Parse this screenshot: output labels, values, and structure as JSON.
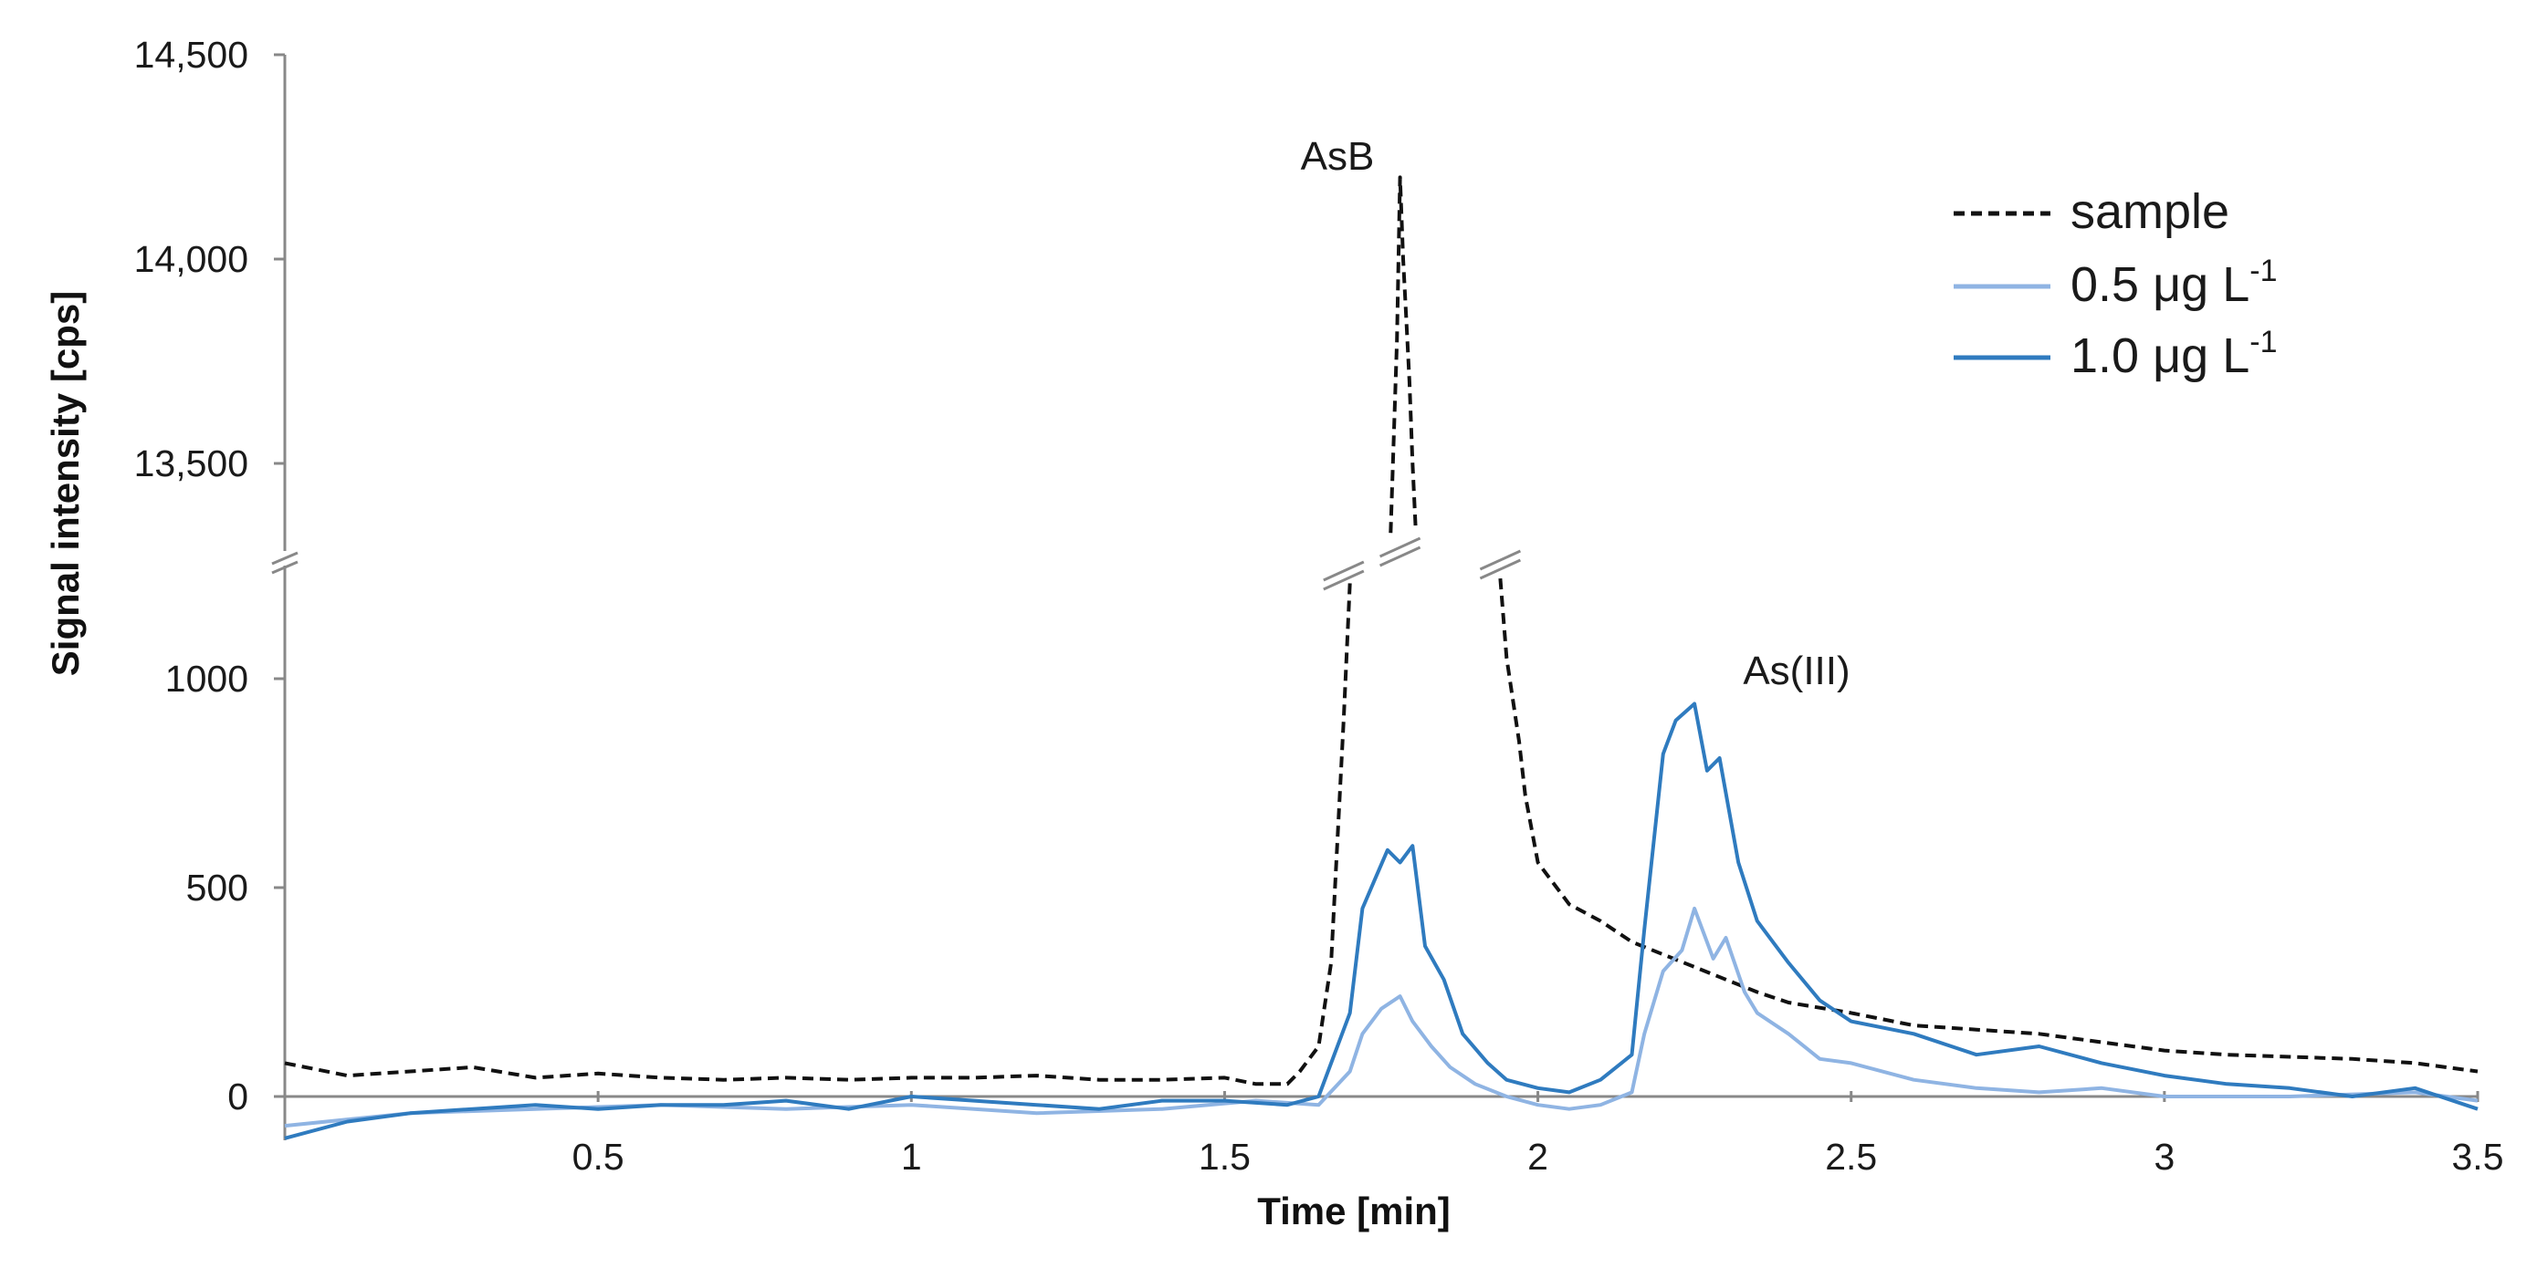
{
  "chart_data": {
    "type": "line",
    "xlabel": "Time [min]",
    "ylabel": "Signal intensity [cps]",
    "xlim": [
      0,
      3.5
    ],
    "x_ticks": [
      "0.5",
      "1",
      "1.5",
      "2",
      "2.5",
      "3",
      "3.5"
    ],
    "x_tick_values": [
      0.5,
      1,
      1.5,
      2,
      2.5,
      3,
      3.5
    ],
    "y_axis_broken": true,
    "y_lower_range": [
      -100,
      1250
    ],
    "y_upper_range": [
      13300,
      14500
    ],
    "y_ticks_lower": [
      "0",
      "500",
      "1000"
    ],
    "y_tick_values_lower": [
      0,
      500,
      1000
    ],
    "y_ticks_upper": [
      "13,500",
      "14,000",
      "14,500"
    ],
    "y_tick_values_upper": [
      13500,
      14000,
      14500
    ],
    "grid": false,
    "legend_position": "top-right",
    "legend": [
      {
        "label": "sample",
        "sup": ""
      },
      {
        "label": "0.5 μg L",
        "sup": "-1"
      },
      {
        "label": "1.0 μg L",
        "sup": "-1"
      }
    ],
    "annotations": [
      {
        "text": "AsB",
        "x": 1.68,
        "y": 14200
      },
      {
        "text": "As(III)",
        "x": 2.4,
        "y": 1000
      }
    ],
    "series": [
      {
        "name": "sample",
        "color": "#111111",
        "dash": true,
        "x": [
          0,
          0.1,
          0.2,
          0.3,
          0.4,
          0.5,
          0.6,
          0.7,
          0.8,
          0.9,
          1.0,
          1.1,
          1.2,
          1.3,
          1.4,
          1.5,
          1.55,
          1.6,
          1.62,
          1.65,
          1.67,
          1.69,
          1.7
        ],
        "y": [
          80,
          50,
          60,
          70,
          45,
          55,
          45,
          40,
          45,
          40,
          45,
          45,
          50,
          40,
          40,
          45,
          30,
          30,
          60,
          120,
          320,
          900,
          1230
        ],
        "upper_x": [
          1.765,
          1.775,
          1.78,
          1.785,
          1.79,
          1.795,
          1.8,
          1.805
        ],
        "upper_y": [
          13330,
          13800,
          14200,
          14000,
          13850,
          13700,
          13500,
          13340
        ],
        "tail_x": [
          1.94,
          1.95,
          1.97,
          1.98,
          2.0,
          2.02,
          2.05,
          2.1,
          2.15,
          2.2,
          2.25,
          2.3,
          2.35,
          2.4,
          2.5,
          2.6,
          2.7,
          2.8,
          2.9,
          3.0,
          3.1,
          3.2,
          3.3,
          3.4,
          3.5
        ],
        "tail_y": [
          1240,
          1050,
          850,
          720,
          560,
          520,
          460,
          420,
          370,
          340,
          310,
          280,
          250,
          225,
          200,
          170,
          160,
          150,
          130,
          110,
          100,
          95,
          90,
          80,
          60
        ]
      },
      {
        "name": "0.5 μg L-1",
        "color": "#8fb4e3",
        "x": [
          0,
          0.2,
          0.4,
          0.6,
          0.8,
          1.0,
          1.2,
          1.4,
          1.55,
          1.65,
          1.7,
          1.72,
          1.75,
          1.78,
          1.8,
          1.83,
          1.86,
          1.9,
          1.95,
          2.0,
          2.05,
          2.1,
          2.15,
          2.17,
          2.2,
          2.23,
          2.25,
          2.28,
          2.3,
          2.33,
          2.35,
          2.4,
          2.45,
          2.5,
          2.6,
          2.7,
          2.8,
          2.9,
          3.0,
          3.2,
          3.4,
          3.5
        ],
        "y": [
          -70,
          -40,
          -30,
          -20,
          -30,
          -20,
          -40,
          -30,
          -10,
          -20,
          60,
          150,
          210,
          240,
          180,
          120,
          70,
          30,
          0,
          -20,
          -30,
          -20,
          10,
          150,
          300,
          350,
          450,
          330,
          380,
          250,
          200,
          150,
          90,
          80,
          40,
          20,
          10,
          20,
          0,
          0,
          10,
          -10
        ]
      },
      {
        "name": "1.0 μg L-1",
        "color": "#2f7bbf",
        "x": [
          0,
          0.1,
          0.2,
          0.3,
          0.4,
          0.5,
          0.6,
          0.7,
          0.8,
          0.9,
          1.0,
          1.1,
          1.2,
          1.3,
          1.4,
          1.5,
          1.6,
          1.65,
          1.7,
          1.72,
          1.74,
          1.76,
          1.78,
          1.8,
          1.82,
          1.85,
          1.88,
          1.92,
          1.95,
          2.0,
          2.05,
          2.1,
          2.15,
          2.17,
          2.2,
          2.22,
          2.25,
          2.27,
          2.29,
          2.32,
          2.35,
          2.4,
          2.45,
          2.5,
          2.6,
          2.7,
          2.8,
          2.9,
          3.0,
          3.1,
          3.2,
          3.3,
          3.4,
          3.5
        ],
        "y": [
          -100,
          -60,
          -40,
          -30,
          -20,
          -30,
          -20,
          -20,
          -10,
          -30,
          0,
          -10,
          -20,
          -30,
          -10,
          -10,
          -20,
          0,
          200,
          450,
          520,
          590,
          560,
          600,
          360,
          280,
          150,
          80,
          40,
          20,
          10,
          40,
          100,
          400,
          820,
          900,
          940,
          780,
          810,
          560,
          420,
          320,
          230,
          180,
          150,
          100,
          120,
          80,
          50,
          30,
          20,
          0,
          20,
          -30
        ]
      }
    ]
  }
}
